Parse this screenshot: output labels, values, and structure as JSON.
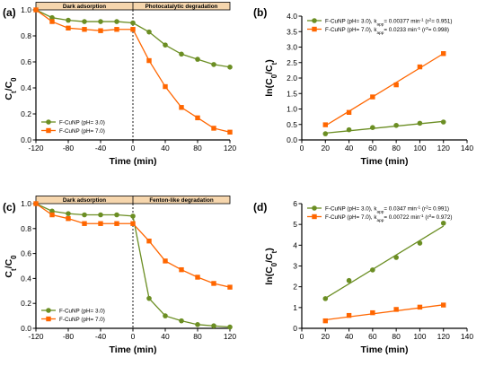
{
  "chart_data": [
    {
      "panel": "(a)",
      "type": "line",
      "ylabel": "Ct/C0",
      "xlabel": "Time (min)",
      "xlim": [
        -120,
        120
      ],
      "ylim": [
        0,
        1.0
      ],
      "xticks": [
        -120,
        -80,
        -40,
        0,
        40,
        80,
        120
      ],
      "yticks": [
        0,
        0.2,
        0.4,
        0.6,
        0.8,
        1.0
      ],
      "phases": [
        "Dark adsorption",
        "Photocatalytic degradation"
      ],
      "phase_divider_x": 0,
      "legend_position": "bottom-left",
      "series": [
        {
          "name": "F-CuNP (pH= 3.0)",
          "color": "#6b8e23",
          "marker": "circle",
          "x": [
            -120,
            -100,
            -80,
            -60,
            -40,
            -20,
            0,
            20,
            40,
            60,
            80,
            100,
            120
          ],
          "y": [
            1.0,
            0.94,
            0.92,
            0.91,
            0.91,
            0.91,
            0.9,
            0.83,
            0.73,
            0.66,
            0.62,
            0.58,
            0.56
          ]
        },
        {
          "name": "F-CuNP (pH= 7.0)",
          "color": "#ff6600",
          "marker": "square",
          "x": [
            -120,
            -100,
            -80,
            -60,
            -40,
            -20,
            0,
            20,
            40,
            60,
            80,
            100,
            120
          ],
          "y": [
            1.0,
            0.91,
            0.86,
            0.85,
            0.84,
            0.85,
            0.85,
            0.61,
            0.41,
            0.25,
            0.17,
            0.09,
            0.06
          ]
        }
      ]
    },
    {
      "panel": "(b)",
      "type": "scatter",
      "ylabel": "ln(C0/Ct)",
      "xlabel": "Time (min)",
      "xlim": [
        0,
        140
      ],
      "ylim": [
        0,
        4.0
      ],
      "xticks": [
        0,
        20,
        40,
        60,
        80,
        100,
        120,
        140
      ],
      "yticks": [
        0,
        0.5,
        1.0,
        1.5,
        2.0,
        2.5,
        3.0,
        3.5,
        4.0
      ],
      "legend_position": "top-left",
      "series": [
        {
          "name": "F-CuNP (pH= 3.0), kapp= 0.00377 min-1 (r2= 0.951)",
          "color": "#6b8e23",
          "marker": "circle",
          "x": [
            20,
            40,
            60,
            80,
            100,
            120
          ],
          "y": [
            0.2,
            0.33,
            0.4,
            0.47,
            0.54,
            0.58
          ],
          "fit": [
            [
              20,
              0.22
            ],
            [
              120,
              0.6
            ]
          ]
        },
        {
          "name": "F-CuNP (pH= 7.0), kapp= 0.0233 min-1 (r2= 0.998)",
          "color": "#ff6600",
          "marker": "square",
          "x": [
            20,
            40,
            60,
            80,
            100,
            120
          ],
          "y": [
            0.49,
            0.89,
            1.39,
            1.78,
            2.36,
            2.79
          ],
          "fit": [
            [
              20,
              0.46
            ],
            [
              120,
              2.79
            ]
          ]
        }
      ]
    },
    {
      "panel": "(c)",
      "type": "line",
      "ylabel": "Ct/C0",
      "xlabel": "Time (min)",
      "xlim": [
        -120,
        120
      ],
      "ylim": [
        0,
        1.0
      ],
      "xticks": [
        -120,
        -80,
        -40,
        0,
        40,
        80,
        120
      ],
      "yticks": [
        0,
        0.2,
        0.4,
        0.6,
        0.8,
        1.0
      ],
      "phases": [
        "Dark adsorption",
        "Fenton-like degradation"
      ],
      "phase_divider_x": 0,
      "legend_position": "bottom-left",
      "series": [
        {
          "name": "F-CuNP (pH= 3.0)",
          "color": "#6b8e23",
          "marker": "circle",
          "x": [
            -120,
            -100,
            -80,
            -60,
            -40,
            -20,
            0,
            20,
            40,
            60,
            80,
            100,
            120
          ],
          "y": [
            1.0,
            0.94,
            0.92,
            0.91,
            0.91,
            0.91,
            0.9,
            0.24,
            0.1,
            0.06,
            0.03,
            0.02,
            0.01
          ]
        },
        {
          "name": "F-CuNP (pH= 7.0)",
          "color": "#ff6600",
          "marker": "square",
          "x": [
            -120,
            -100,
            -80,
            -60,
            -40,
            -20,
            0,
            20,
            40,
            60,
            80,
            100,
            120
          ],
          "y": [
            1.0,
            0.91,
            0.88,
            0.84,
            0.84,
            0.84,
            0.84,
            0.7,
            0.54,
            0.47,
            0.41,
            0.36,
            0.33
          ]
        }
      ]
    },
    {
      "panel": "(d)",
      "type": "scatter",
      "ylabel": "ln(C0/Ct)",
      "xlabel": "Time (min)",
      "xlim": [
        0,
        140
      ],
      "ylim": [
        0,
        6.0
      ],
      "xticks": [
        0,
        20,
        40,
        60,
        80,
        100,
        120,
        140
      ],
      "yticks": [
        0,
        1.0,
        2.0,
        3.0,
        4.0,
        5.0,
        6.0
      ],
      "legend_position": "top-left",
      "series": [
        {
          "name": "F-CuNP (pH= 3.0), kapp= 0.0347 min-1 (r2= 0.991)",
          "color": "#6b8e23",
          "marker": "circle",
          "x": [
            20,
            40,
            60,
            80,
            100,
            120
          ],
          "y": [
            1.43,
            2.3,
            2.81,
            3.41,
            4.1,
            5.06
          ],
          "fit": [
            [
              20,
              1.45
            ],
            [
              120,
              4.92
            ]
          ]
        },
        {
          "name": "F-CuNP (pH= 7.0), kapp= 0.00722 min-1 (r2= 0.972)",
          "color": "#ff6600",
          "marker": "square",
          "x": [
            20,
            40,
            60,
            80,
            100,
            120
          ],
          "y": [
            0.36,
            0.62,
            0.75,
            0.91,
            1.02,
            1.12
          ],
          "fit": [
            [
              20,
              0.41
            ],
            [
              120,
              1.13
            ]
          ]
        }
      ]
    }
  ]
}
